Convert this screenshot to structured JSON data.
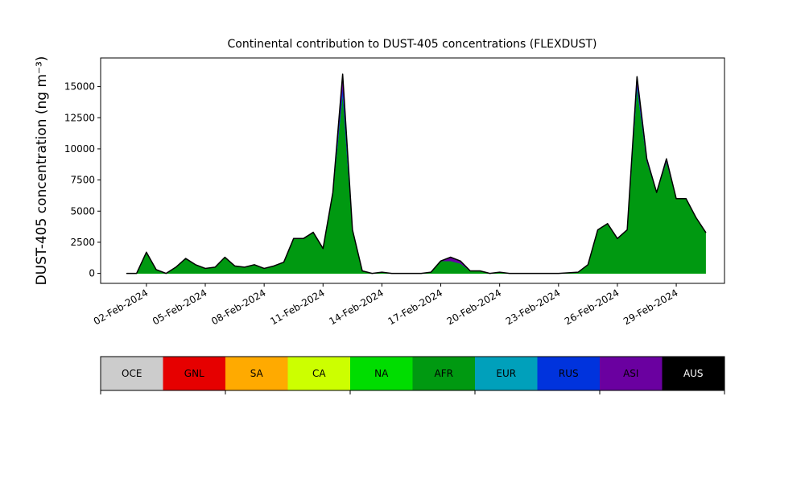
{
  "chart_data": {
    "type": "stacked_area",
    "title": "Continental contribution to DUST-405 concentrations (FLEXDUST)",
    "y_label": "DUST-405 concentration (ng m⁻³)",
    "x": [
      "2024-02-01T00:00",
      "2024-02-01T12:00",
      "2024-02-02T00:00",
      "2024-02-02T12:00",
      "2024-02-03T00:00",
      "2024-02-03T12:00",
      "2024-02-04T00:00",
      "2024-02-04T12:00",
      "2024-02-05T00:00",
      "2024-02-05T12:00",
      "2024-02-06T00:00",
      "2024-02-06T12:00",
      "2024-02-07T00:00",
      "2024-02-07T12:00",
      "2024-02-08T00:00",
      "2024-02-08T12:00",
      "2024-02-09T00:00",
      "2024-02-09T12:00",
      "2024-02-10T00:00",
      "2024-02-10T12:00",
      "2024-02-11T00:00",
      "2024-02-11T12:00",
      "2024-02-12T00:00",
      "2024-02-12T12:00",
      "2024-02-13T00:00",
      "2024-02-13T12:00",
      "2024-02-14T00:00",
      "2024-02-14T12:00",
      "2024-02-15T00:00",
      "2024-02-15T12:00",
      "2024-02-16T00:00",
      "2024-02-16T12:00",
      "2024-02-17T00:00",
      "2024-02-17T12:00",
      "2024-02-18T00:00",
      "2024-02-18T12:00",
      "2024-02-19T00:00",
      "2024-02-19T12:00",
      "2024-02-20T00:00",
      "2024-02-20T12:00",
      "2024-02-21T00:00",
      "2024-02-21T12:00",
      "2024-02-22T00:00",
      "2024-02-22T12:00",
      "2024-02-23T00:00",
      "2024-02-23T12:00",
      "2024-02-24T00:00",
      "2024-02-24T12:00",
      "2024-02-25T00:00",
      "2024-02-25T12:00",
      "2024-02-26T00:00",
      "2024-02-26T12:00",
      "2024-02-27T00:00",
      "2024-02-27T12:00",
      "2024-02-28T00:00",
      "2024-02-28T12:00",
      "2024-02-29T00:00",
      "2024-02-29T12:00",
      "2024-03-01T00:00",
      "2024-03-01T12:00"
    ],
    "series": [
      {
        "name": "OCE",
        "color": "#cccccc",
        "values": [
          0,
          0,
          0,
          0,
          0,
          0,
          0,
          0,
          0,
          0,
          0,
          0,
          0,
          0,
          0,
          0,
          0,
          0,
          0,
          0,
          0,
          0,
          0,
          0,
          0,
          0,
          0,
          0,
          0,
          0,
          0,
          0,
          0,
          0,
          0,
          0,
          0,
          0,
          0,
          0,
          0,
          0,
          0,
          0,
          0,
          0,
          0,
          0,
          0,
          0,
          0,
          0,
          0,
          0,
          0,
          0,
          0,
          0,
          0,
          0
        ]
      },
      {
        "name": "GNL",
        "color": "#e60000",
        "values": [
          0,
          0,
          0,
          0,
          0,
          0,
          0,
          0,
          0,
          0,
          0,
          0,
          0,
          0,
          0,
          0,
          0,
          0,
          0,
          0,
          0,
          0,
          0,
          0,
          0,
          0,
          0,
          0,
          0,
          0,
          0,
          0,
          0,
          0,
          0,
          0,
          0,
          0,
          0,
          0,
          0,
          0,
          0,
          0,
          0,
          0,
          0,
          0,
          0,
          0,
          0,
          0,
          0,
          0,
          0,
          0,
          0,
          0,
          0,
          0
        ]
      },
      {
        "name": "SA",
        "color": "#ffaa00",
        "values": [
          0,
          0,
          0,
          0,
          0,
          0,
          0,
          0,
          0,
          0,
          0,
          0,
          0,
          0,
          0,
          0,
          0,
          0,
          0,
          0,
          0,
          0,
          0,
          0,
          0,
          0,
          0,
          0,
          0,
          0,
          0,
          0,
          0,
          0,
          0,
          0,
          0,
          0,
          0,
          0,
          0,
          0,
          0,
          0,
          0,
          0,
          0,
          0,
          0,
          0,
          0,
          0,
          0,
          0,
          0,
          0,
          0,
          0,
          0,
          0
        ]
      },
      {
        "name": "CA",
        "color": "#ccff00",
        "values": [
          0,
          0,
          0,
          0,
          0,
          0,
          0,
          0,
          0,
          0,
          0,
          0,
          0,
          0,
          0,
          0,
          0,
          0,
          0,
          0,
          0,
          0,
          0,
          0,
          0,
          0,
          0,
          0,
          0,
          0,
          0,
          0,
          0,
          0,
          0,
          0,
          0,
          0,
          0,
          0,
          0,
          0,
          0,
          0,
          0,
          0,
          0,
          0,
          0,
          0,
          0,
          0,
          0,
          0,
          0,
          0,
          0,
          0,
          0,
          0
        ]
      },
      {
        "name": "NA",
        "color": "#00dd00",
        "values": [
          0,
          0,
          0,
          0,
          0,
          0,
          0,
          0,
          0,
          0,
          0,
          0,
          0,
          0,
          0,
          0,
          0,
          0,
          0,
          0,
          0,
          0,
          0,
          0,
          0,
          0,
          0,
          0,
          0,
          0,
          0,
          0,
          0,
          0,
          0,
          0,
          0,
          0,
          0,
          0,
          0,
          0,
          0,
          0,
          0,
          0,
          0,
          0,
          0,
          0,
          0,
          0,
          0,
          0,
          0,
          0,
          0,
          0,
          0,
          0
        ]
      },
      {
        "name": "AFR",
        "color": "#009911",
        "values": [
          0,
          0,
          1700,
          300,
          0,
          500,
          1200,
          700,
          400,
          500,
          1300,
          600,
          500,
          700,
          400,
          600,
          900,
          2800,
          2800,
          3300,
          2000,
          6500,
          14500,
          3500,
          200,
          0,
          100,
          0,
          0,
          0,
          0,
          100,
          1000,
          1000,
          800,
          200,
          200,
          0,
          100,
          0,
          0,
          0,
          0,
          0,
          0,
          50,
          100,
          700,
          3500,
          4000,
          2800,
          3500,
          15000,
          9000,
          6500,
          9000,
          6000,
          6000,
          4500,
          3300
        ]
      },
      {
        "name": "EUR",
        "color": "#00a0bb",
        "values": [
          0,
          0,
          0,
          0,
          0,
          0,
          0,
          0,
          0,
          0,
          0,
          0,
          0,
          0,
          0,
          0,
          0,
          0,
          0,
          0,
          0,
          0,
          0,
          0,
          0,
          0,
          0,
          0,
          0,
          0,
          0,
          0,
          0,
          0,
          0,
          0,
          0,
          0,
          0,
          0,
          0,
          0,
          0,
          0,
          0,
          0,
          0,
          0,
          0,
          0,
          0,
          0,
          0,
          0,
          0,
          0,
          0,
          0,
          0,
          0
        ]
      },
      {
        "name": "RUS",
        "color": "#0033dd",
        "values": [
          0,
          0,
          0,
          0,
          0,
          0,
          0,
          0,
          0,
          0,
          0,
          0,
          0,
          0,
          0,
          0,
          0,
          0,
          0,
          0,
          0,
          0,
          500,
          0,
          0,
          0,
          0,
          0,
          0,
          0,
          0,
          0,
          0,
          0,
          0,
          0,
          0,
          0,
          0,
          0,
          0,
          0,
          0,
          0,
          0,
          0,
          0,
          0,
          0,
          0,
          0,
          0,
          300,
          0,
          0,
          0,
          0,
          0,
          0,
          0
        ]
      },
      {
        "name": "ASI",
        "color": "#6a00a0",
        "values": [
          0,
          0,
          0,
          0,
          0,
          0,
          0,
          0,
          0,
          0,
          0,
          0,
          0,
          0,
          0,
          0,
          0,
          0,
          0,
          0,
          0,
          0,
          1000,
          0,
          0,
          0,
          0,
          0,
          0,
          0,
          0,
          0,
          0,
          300,
          200,
          0,
          0,
          0,
          0,
          0,
          0,
          0,
          0,
          0,
          0,
          0,
          0,
          0,
          0,
          0,
          0,
          0,
          500,
          200,
          0,
          200,
          0,
          0,
          0,
          0
        ]
      },
      {
        "name": "AUS",
        "color": "#000000",
        "values": [
          0,
          0,
          0,
          0,
          0,
          0,
          0,
          0,
          0,
          0,
          0,
          0,
          0,
          0,
          0,
          0,
          0,
          0,
          0,
          0,
          0,
          0,
          0,
          0,
          0,
          0,
          0,
          0,
          0,
          0,
          0,
          0,
          0,
          0,
          0,
          0,
          0,
          0,
          0,
          0,
          0,
          0,
          0,
          0,
          0,
          0,
          0,
          0,
          0,
          0,
          0,
          0,
          0,
          0,
          0,
          0,
          0,
          0,
          0,
          0
        ]
      }
    ],
    "xlim": [
      "2024-01-30T16:00",
      "2024-03-02T11:00"
    ],
    "xticks": [
      {
        "value": "2024-02-02T00:00",
        "label": "02-Feb-2024"
      },
      {
        "value": "2024-02-05T00:00",
        "label": "05-Feb-2024"
      },
      {
        "value": "2024-02-08T00:00",
        "label": "08-Feb-2024"
      },
      {
        "value": "2024-02-11T00:00",
        "label": "11-Feb-2024"
      },
      {
        "value": "2024-02-14T00:00",
        "label": "14-Feb-2024"
      },
      {
        "value": "2024-02-17T00:00",
        "label": "17-Feb-2024"
      },
      {
        "value": "2024-02-20T00:00",
        "label": "20-Feb-2024"
      },
      {
        "value": "2024-02-23T00:00",
        "label": "23-Feb-2024"
      },
      {
        "value": "2024-02-26T00:00",
        "label": "26-Feb-2024"
      },
      {
        "value": "2024-02-29T00:00",
        "label": "29-Feb-2024"
      }
    ],
    "ylim": [
      -800,
      17300
    ],
    "yticks": [
      0,
      2500,
      5000,
      7500,
      10000,
      12500,
      15000
    ]
  }
}
